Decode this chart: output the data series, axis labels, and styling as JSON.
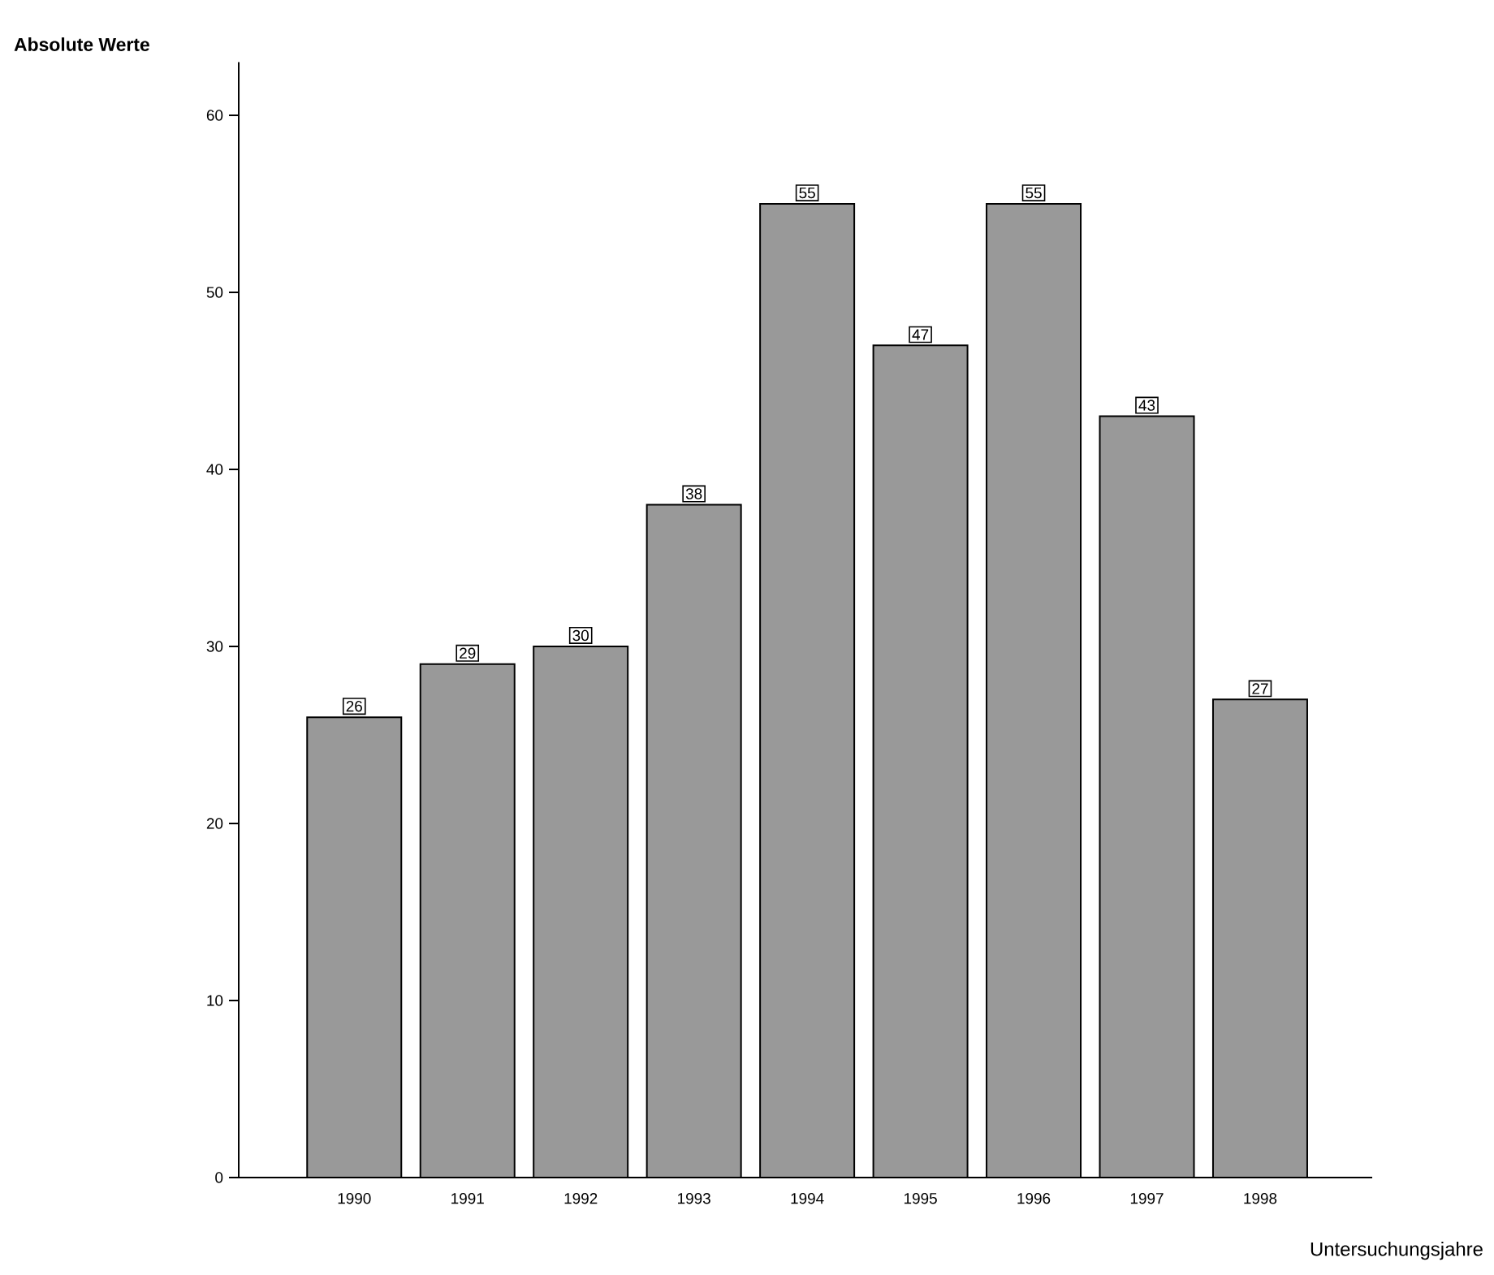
{
  "chart_data": {
    "type": "bar",
    "ylabel": "Absolute Werte",
    "xlabel": "Untersuchungsjahre",
    "categories": [
      "1990",
      "1991",
      "1992",
      "1993",
      "1994",
      "1995",
      "1996",
      "1997",
      "1998"
    ],
    "values": [
      26,
      29,
      30,
      38,
      55,
      47,
      55,
      43,
      27
    ],
    "color": "#999999",
    "ylim": [
      0,
      63
    ],
    "yticks": [
      0,
      10,
      20,
      30,
      40,
      50,
      60
    ],
    "data_labels": true,
    "grid": false
  }
}
